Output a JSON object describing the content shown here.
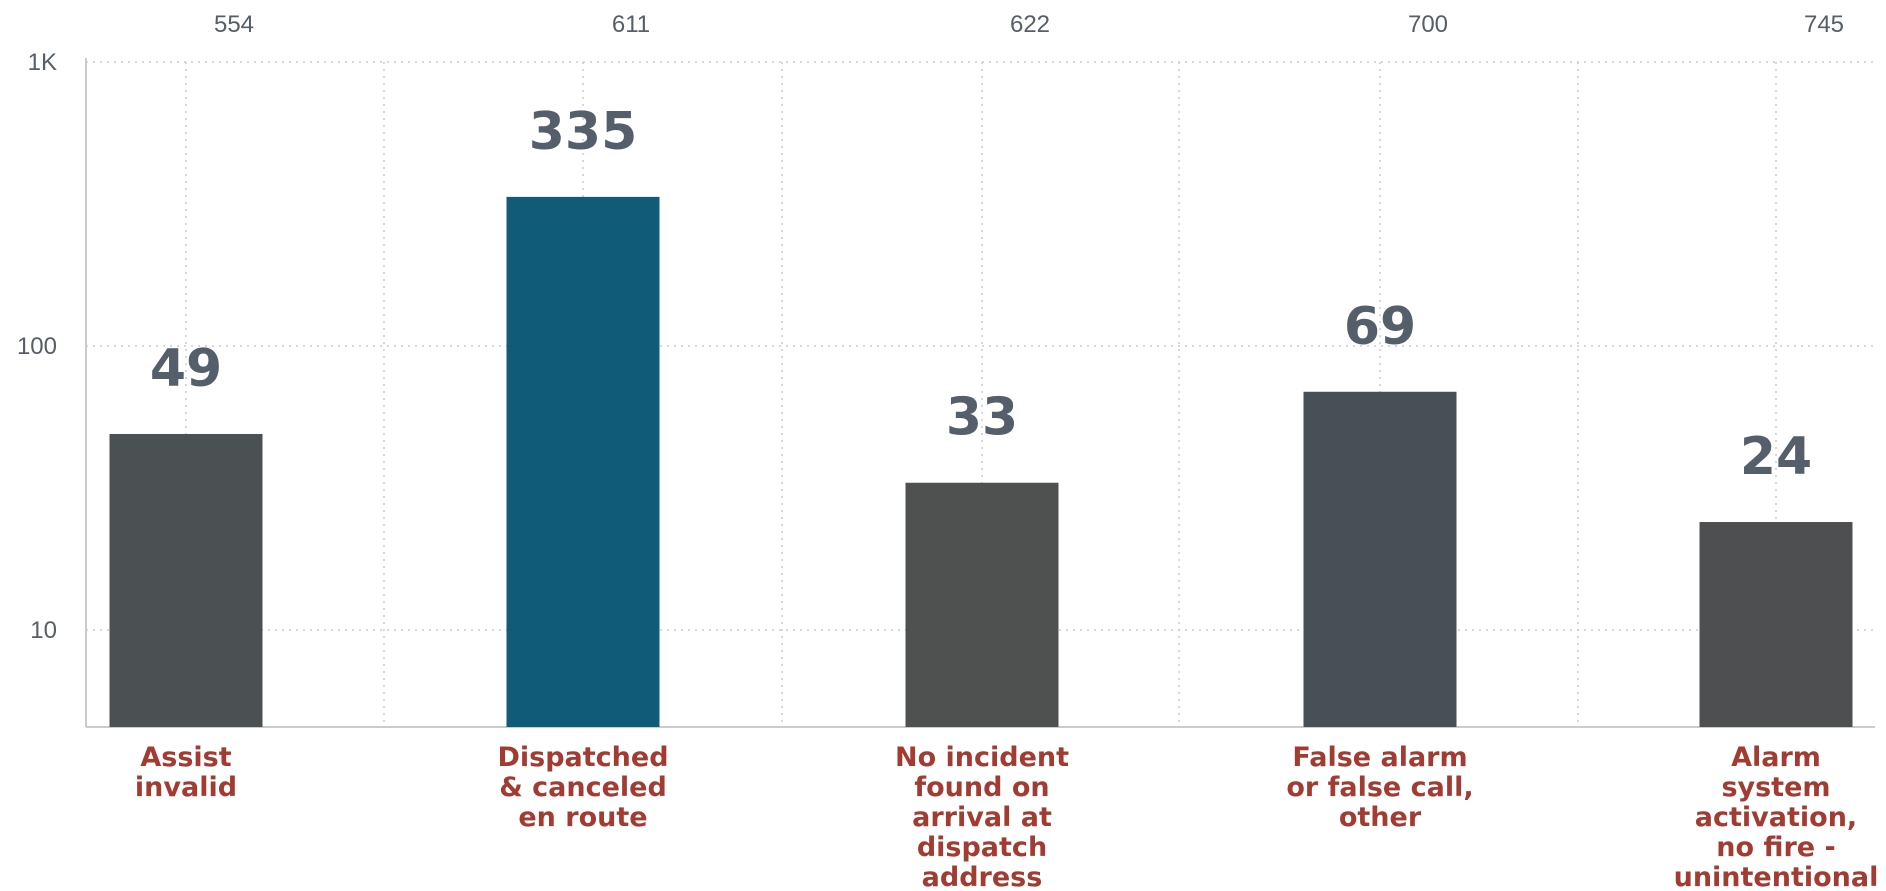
{
  "chart_data": {
    "type": "bar",
    "scale": "log",
    "ylim": [
      5,
      1000
    ],
    "y_ticks": [
      {
        "value": 10,
        "label": "10"
      },
      {
        "value": 100,
        "label": "100"
      },
      {
        "value": 1000,
        "label": "1K"
      }
    ],
    "top_labels": [
      "554",
      "611",
      "622",
      "700",
      "745"
    ],
    "categories": [
      "Assist invalid",
      "Dispatched & canceled en route",
      "No incident found on arrival at dispatch address",
      "False alarm or false call, other",
      "Alarm system activation, no fire - unintentional"
    ],
    "category_lines": [
      [
        "Assist",
        "invalid"
      ],
      [
        "Dispatched",
        "& canceled",
        "en route"
      ],
      [
        "No incident",
        "found on",
        "arrival at",
        "dispatch",
        "address"
      ],
      [
        "False alarm",
        "or false call,",
        "other"
      ],
      [
        "Alarm",
        "system",
        "activation,",
        "no fire -",
        "unintentional"
      ]
    ],
    "values": [
      49,
      335,
      33,
      69,
      24
    ],
    "value_labels": [
      "49",
      "335",
      "33",
      "69",
      "24"
    ],
    "bar_colors": [
      "#4b5052",
      "#0f5b78",
      "#4f5050",
      "#465056",
      "#4e4f50"
    ],
    "label_color": "#a23b32",
    "value_label_color": "#555e6b",
    "grid": true
  }
}
